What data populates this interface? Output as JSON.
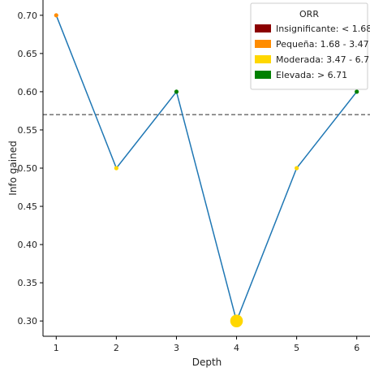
{
  "chart_data": {
    "type": "line",
    "xlabel": "Depth",
    "ylabel": "Info gained",
    "x": [
      1,
      2,
      3,
      4,
      5,
      6
    ],
    "series": [
      {
        "values": [
          0.7,
          0.5,
          0.6,
          0.3,
          0.5,
          0.6
        ],
        "color": "#1f77b4",
        "point_categories": [
          "Pequeña",
          "Moderada",
          "Elevada",
          "Moderada",
          "Moderada",
          "Elevada"
        ],
        "point_sizes": [
          1,
          1,
          1,
          3,
          1,
          1
        ]
      }
    ],
    "xlim": [
      0.78,
      6.22
    ],
    "ylim": [
      0.28,
      0.72
    ],
    "xticks": [
      1,
      2,
      3,
      4,
      5,
      6
    ],
    "yticks": [
      0.3,
      0.35,
      0.4,
      0.45,
      0.5,
      0.55,
      0.6,
      0.65,
      0.7
    ],
    "reference_line": {
      "y": 0.57,
      "style": "dashed",
      "color": "#555555"
    },
    "grid": false,
    "legend": {
      "title": "ORR",
      "placement": "top-right",
      "entries": [
        {
          "key": "Insignificante",
          "label": "Insignificante: < 1.68",
          "color": "#8b0000"
        },
        {
          "key": "Pequeña",
          "label": "Pequeña: 1.68 - 3.47",
          "color": "#ff8c00"
        },
        {
          "key": "Moderada",
          "label": "Moderada: 3.47 - 6.71",
          "color": "#ffd700"
        },
        {
          "key": "Elevada",
          "label": "Elevada: > 6.71",
          "color": "#008000"
        }
      ]
    }
  }
}
